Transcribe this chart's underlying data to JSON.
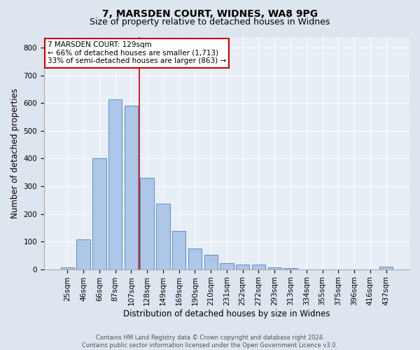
{
  "title1": "7, MARSDEN COURT, WIDNES, WA8 9PG",
  "title2": "Size of property relative to detached houses in Widnes",
  "xlabel": "Distribution of detached houses by size in Widnes",
  "ylabel": "Number of detached properties",
  "categories": [
    "25sqm",
    "46sqm",
    "66sqm",
    "87sqm",
    "107sqm",
    "128sqm",
    "149sqm",
    "169sqm",
    "190sqm",
    "210sqm",
    "231sqm",
    "252sqm",
    "272sqm",
    "293sqm",
    "313sqm",
    "334sqm",
    "355sqm",
    "375sqm",
    "396sqm",
    "416sqm",
    "437sqm"
  ],
  "values": [
    7,
    108,
    401,
    614,
    592,
    331,
    238,
    137,
    76,
    51,
    23,
    16,
    16,
    6,
    5,
    0,
    0,
    0,
    0,
    0,
    8
  ],
  "bar_color": "#aec6e8",
  "bar_edge_color": "#5a8fc2",
  "vline_index": 4.5,
  "marker_label": "7 MARSDEN COURT: 129sqm",
  "annotation_line1": "← 66% of detached houses are smaller (1,713)",
  "annotation_line2": "33% of semi-detached houses are larger (863) →",
  "vline_color": "#cc0000",
  "annotation_box_edge": "#cc0000",
  "footer_text": "Contains HM Land Registry data © Crown copyright and database right 2024.\nContains public sector information licensed under the Open Government Licence v3.0.",
  "ylim": [
    0,
    840
  ],
  "yticks": [
    0,
    100,
    200,
    300,
    400,
    500,
    600,
    700,
    800
  ],
  "bg_color": "#dde5ef",
  "plot_bg_color": "#e8eef5",
  "title1_fontsize": 10,
  "title2_fontsize": 9,
  "xlabel_fontsize": 8.5,
  "ylabel_fontsize": 8.5,
  "tick_fontsize": 7.5,
  "annotation_fontsize": 7.5,
  "footer_fontsize": 6.0
}
